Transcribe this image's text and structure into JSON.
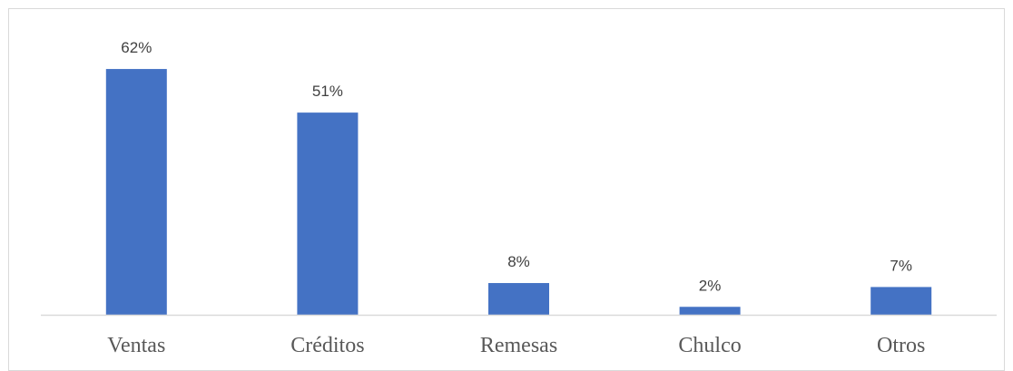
{
  "chart_data": {
    "type": "bar",
    "categories": [
      "Ventas",
      "Créditos",
      "Remesas",
      "Chulco",
      "Otros"
    ],
    "values": [
      62,
      51,
      8,
      2,
      7
    ],
    "data_labels": [
      "62%",
      "51%",
      "8%",
      "2%",
      "7%"
    ],
    "unit": "%",
    "title": "",
    "xlabel": "",
    "ylabel": "",
    "ylim": [
      0,
      70
    ],
    "grid": false,
    "legend": "none",
    "bar_color": "#4472c4",
    "axis_color": "#d9d9d9"
  }
}
